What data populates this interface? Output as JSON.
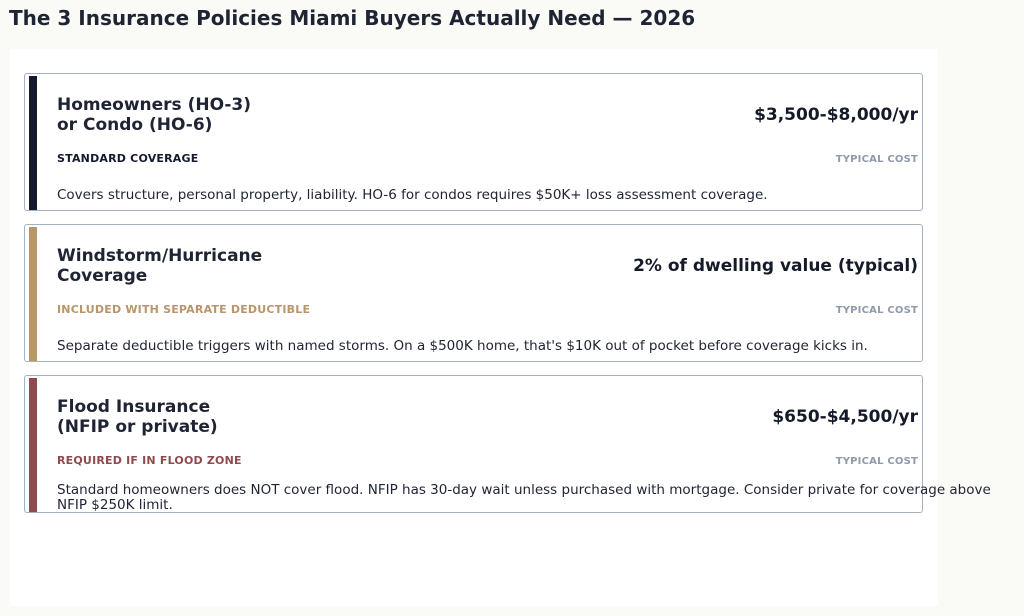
{
  "page": {
    "title": "The 3 Insurance Policies Miami Buyers Actually Need — 2026"
  },
  "cards": [
    {
      "title_line1": "Homeowners (HO-3)",
      "title_line2": "or Condo (HO-6)",
      "price": "$3,500-$8,000/yr",
      "tag": "STANDARD COVERAGE",
      "cost_label": "TYPICAL COST",
      "description": "Covers structure, personal property, liability. HO-6 for condos requires $50K+ loss assessment coverage.",
      "accent_color": "#141a2e",
      "tag_color": "#141a2e"
    },
    {
      "title_line1": "Windstorm/Hurricane",
      "title_line2": "Coverage",
      "price": "2% of dwelling value (typical)",
      "tag": "INCLUDED WITH SEPARATE DEDUCTIBLE",
      "cost_label": "TYPICAL COST",
      "description": "Separate deductible triggers with named storms. On a $500K home, that's $10K out of pocket before coverage kicks in.",
      "accent_color": "#b8966a",
      "tag_color": "#b8966a"
    },
    {
      "title_line1": "Flood Insurance",
      "title_line2": "(NFIP or private)",
      "price": "$650-$4,500/yr",
      "tag": "REQUIRED IF IN FLOOD ZONE",
      "cost_label": "TYPICAL COST",
      "description": "Standard homeowners does NOT cover flood. NFIP has 30-day wait unless purchased with mortgage. Consider private for coverage above NFIP $250K limit.",
      "accent_color": "#8e4a4f",
      "tag_color": "#8e4a4f"
    }
  ]
}
